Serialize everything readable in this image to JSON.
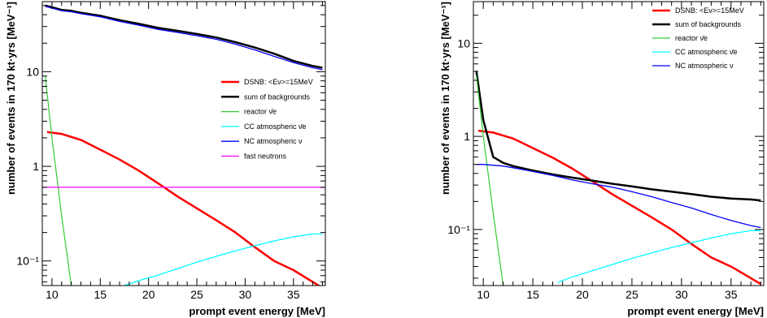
{
  "chart_data": [
    {
      "type": "line",
      "title": "",
      "xlabel": "prompt event energy [MeV]",
      "ylabel": "number of events in 170 kt·yrs [MeV⁻¹]",
      "xlim": [
        9,
        38.3
      ],
      "ylim": [
        0.055,
        55
      ],
      "yscale": "log",
      "grid": false,
      "legend_position": "right-middle",
      "x_ticks": [
        {
          "value": 10,
          "label": "10"
        },
        {
          "value": 15,
          "label": "15"
        },
        {
          "value": 20,
          "label": "20"
        },
        {
          "value": 25,
          "label": "25"
        },
        {
          "value": 30,
          "label": "30"
        },
        {
          "value": 35,
          "label": "35"
        }
      ],
      "y_ticks": [
        {
          "value": 0.1,
          "label": "10⁻¹"
        },
        {
          "value": 1,
          "label": "1"
        },
        {
          "value": 10,
          "label": "10"
        }
      ],
      "series": [
        {
          "name": "DSNB: <Eν>=15MeV",
          "color": "#ff0000",
          "width": 2.5,
          "x": [
            9.5,
            11,
            13,
            15,
            17,
            19,
            21,
            23,
            25,
            27,
            29,
            31,
            33,
            35,
            37,
            38
          ],
          "y": [
            2.3,
            2.2,
            1.9,
            1.5,
            1.18,
            0.9,
            0.66,
            0.48,
            0.36,
            0.27,
            0.2,
            0.14,
            0.1,
            0.08,
            0.06,
            0.052
          ]
        },
        {
          "name": "sum of backgrounds",
          "color": "#000000",
          "width": 2.5,
          "x": [
            9.3,
            10,
            11,
            12,
            13,
            15,
            17,
            19,
            21,
            23,
            25,
            27,
            29,
            31,
            33,
            35,
            37,
            38
          ],
          "y": [
            50,
            48,
            45,
            44,
            42,
            39,
            35,
            32,
            29,
            27,
            25,
            23,
            20.5,
            18,
            15.5,
            13,
            11.5,
            11
          ]
        },
        {
          "name": "reactor ν̄e",
          "color": "#33cc33",
          "width": 1.2,
          "x": [
            9.3,
            10,
            11,
            12
          ],
          "y": [
            9.0,
            2.0,
            0.3,
            0.055
          ]
        },
        {
          "name": "CC atmospheric ν̄e",
          "color": "#00ffff",
          "width": 1.3,
          "x": [
            17.5,
            19,
            21,
            23,
            25,
            27,
            29,
            31,
            33,
            35,
            37,
            38
          ],
          "y": [
            0.055,
            0.062,
            0.071,
            0.083,
            0.097,
            0.112,
            0.128,
            0.145,
            0.163,
            0.18,
            0.193,
            0.193
          ]
        },
        {
          "name": "NC atmospheric ν",
          "color": "#0000ff",
          "width": 1.3,
          "x": [
            9.3,
            10,
            11,
            12,
            13,
            15,
            17,
            19,
            21,
            23,
            25,
            27,
            29,
            31,
            33,
            35,
            37,
            38
          ],
          "y": [
            49,
            47,
            44,
            43,
            41,
            38,
            34,
            31,
            28,
            26,
            24,
            22,
            19.5,
            17,
            14.5,
            12.5,
            11,
            10.5
          ]
        },
        {
          "name": "fast neutrons",
          "color": "#ff00ff",
          "width": 1.3,
          "x": [
            9,
            38.3
          ],
          "y": [
            0.6,
            0.6
          ]
        }
      ]
    },
    {
      "type": "line",
      "title": "",
      "xlabel": "prompt event energy [MeV]",
      "ylabel": "number of events in 170 kt·yrs [MeV⁻¹]",
      "xlim": [
        9,
        38.3
      ],
      "ylim": [
        0.025,
        28
      ],
      "yscale": "log",
      "grid": false,
      "legend_position": "top-right",
      "x_ticks": [
        {
          "value": 10,
          "label": "10"
        },
        {
          "value": 15,
          "label": "15"
        },
        {
          "value": 20,
          "label": "20"
        },
        {
          "value": 25,
          "label": "25"
        },
        {
          "value": 30,
          "label": "30"
        },
        {
          "value": 35,
          "label": "35"
        }
      ],
      "y_ticks": [
        {
          "value": 0.1,
          "label": "10⁻¹"
        },
        {
          "value": 1,
          "label": "1"
        },
        {
          "value": 10,
          "label": "10"
        }
      ],
      "series": [
        {
          "name": "DSNB: <Eν>=15MeV",
          "color": "#ff0000",
          "width": 2.5,
          "x": [
            9.5,
            11,
            13,
            15,
            17,
            19,
            21,
            23,
            25,
            27,
            29,
            31,
            33,
            35,
            37,
            38
          ],
          "y": [
            1.15,
            1.1,
            0.95,
            0.75,
            0.59,
            0.45,
            0.33,
            0.24,
            0.18,
            0.135,
            0.1,
            0.07,
            0.05,
            0.04,
            0.03,
            0.026
          ]
        },
        {
          "name": "sum of backgrounds",
          "color": "#000000",
          "width": 2.5,
          "x": [
            9.3,
            10,
            11,
            12,
            13,
            15,
            17,
            19,
            21,
            23,
            25,
            27,
            29,
            31,
            33,
            35,
            37,
            38
          ],
          "y": [
            5.0,
            1.5,
            0.6,
            0.52,
            0.48,
            0.43,
            0.39,
            0.36,
            0.335,
            0.31,
            0.29,
            0.27,
            0.255,
            0.24,
            0.225,
            0.215,
            0.21,
            0.205
          ]
        },
        {
          "name": "reactor ν̄e",
          "color": "#33cc33",
          "width": 1.2,
          "x": [
            9.3,
            10,
            11,
            12
          ],
          "y": [
            4.5,
            1.0,
            0.15,
            0.025
          ]
        },
        {
          "name": "CC atmospheric ν̄e",
          "color": "#00ffff",
          "width": 1.3,
          "x": [
            17.5,
            19,
            21,
            23,
            25,
            27,
            29,
            31,
            33,
            35,
            37,
            38
          ],
          "y": [
            0.027,
            0.031,
            0.036,
            0.042,
            0.049,
            0.056,
            0.064,
            0.072,
            0.081,
            0.09,
            0.097,
            0.097
          ]
        },
        {
          "name": "NC atmospheric ν",
          "color": "#0000ff",
          "width": 1.3,
          "x": [
            9.3,
            10,
            11,
            12,
            13,
            15,
            17,
            19,
            21,
            23,
            25,
            27,
            29,
            31,
            33,
            35,
            37,
            38
          ],
          "y": [
            0.5,
            0.5,
            0.49,
            0.48,
            0.46,
            0.42,
            0.38,
            0.34,
            0.31,
            0.285,
            0.255,
            0.225,
            0.195,
            0.17,
            0.145,
            0.125,
            0.11,
            0.105
          ]
        }
      ]
    }
  ]
}
